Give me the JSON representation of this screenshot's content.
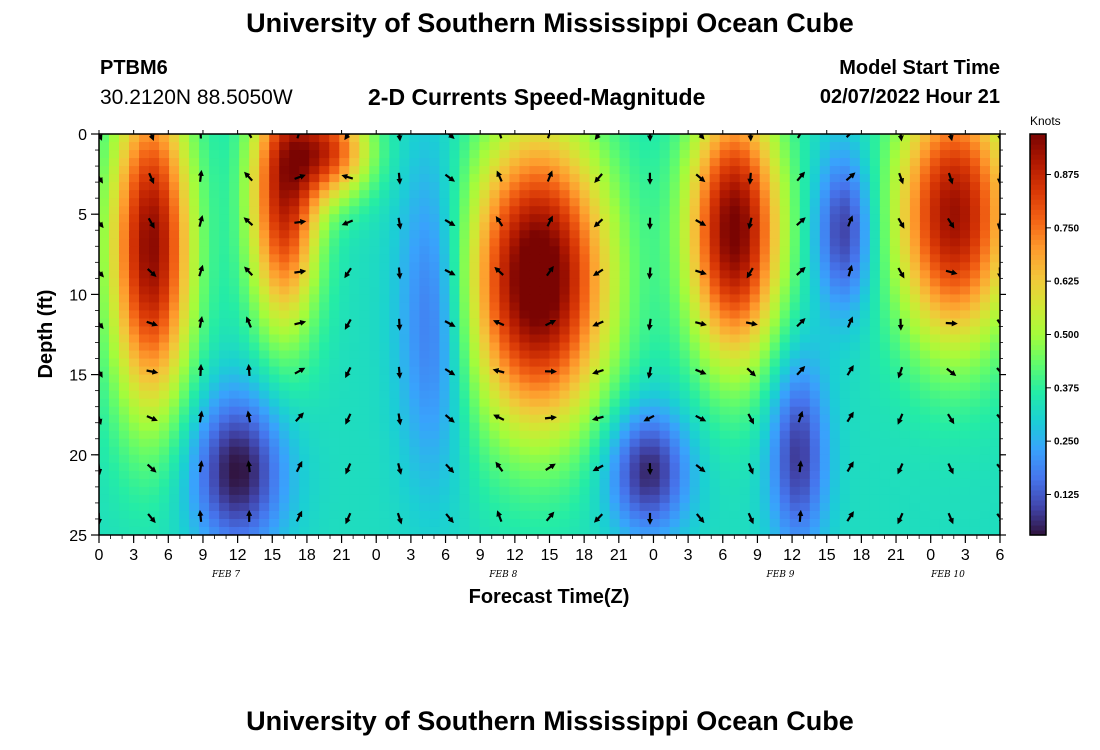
{
  "header": {
    "title": "University of Southern Mississippi Ocean Cube",
    "station_id": "PTBM6",
    "coordinates": "30.2120N  88.5050W",
    "subtitle": "2-D Currents Speed-Magnitude",
    "model_start_label": "Model Start Time",
    "model_start_value": "02/07/2022 Hour 21"
  },
  "footer": {
    "title": "University of Southern Mississippi Ocean Cube"
  },
  "chart_data": {
    "type": "heatmap",
    "title": "2-D Currents Speed-Magnitude",
    "xlabel": "Forecast Time(Z)",
    "ylabel": "Depth (ft)",
    "x_tick_labels": [
      "0",
      "3",
      "6",
      "9",
      "12",
      "15",
      "18",
      "21",
      "0",
      "3",
      "6",
      "9",
      "12",
      "15",
      "18",
      "21",
      "0",
      "3",
      "6",
      "9",
      "12",
      "15",
      "18",
      "21",
      "0",
      "3",
      "6"
    ],
    "x_range_hours": [
      0,
      78
    ],
    "date_labels": [
      {
        "label": "FEB 7",
        "hour": 11
      },
      {
        "label": "FEB 8",
        "hour": 35
      },
      {
        "label": "FEB 9",
        "hour": 59
      },
      {
        "label": "FEB 10",
        "hour": 73.5
      }
    ],
    "y_ticks": [
      0,
      5,
      10,
      15,
      20,
      25
    ],
    "y_range_ft": [
      0,
      25
    ],
    "colorbar": {
      "title": "Knots",
      "range": [
        0.03,
        0.97
      ],
      "tick_values": [
        0.125,
        0.25,
        0.375,
        0.5,
        0.625,
        0.75,
        0.875
      ],
      "tick_labels": [
        "0.125",
        "0.250",
        "0.375",
        "0.500",
        "0.625",
        "0.750",
        "0.875"
      ]
    },
    "arrow_hours": [
      0,
      4.5,
      8.8,
      13,
      17.3,
      21.6,
      26,
      30.3,
      34.7,
      39,
      43.3,
      47.7,
      52,
      56.4,
      60.7,
      65,
      69.4,
      73.7,
      78
    ],
    "arrow_depths_ft": [
      0,
      2.7,
      5.5,
      8.6,
      11.8,
      14.8,
      17.7,
      20.8,
      23.9
    ],
    "speed_model_features": [
      {
        "hour": 4.5,
        "depth": 7,
        "sigma_hours": 3.5,
        "sigma_depth": 10,
        "amplitude": 0.62
      },
      {
        "hour": 16,
        "depth": 4,
        "sigma_hours": 3,
        "sigma_depth": 8,
        "amplitude": 0.55
      },
      {
        "hour": 20,
        "depth": 1,
        "sigma_hours": 3.5,
        "sigma_depth": 3,
        "amplitude": 0.45
      },
      {
        "hour": 38,
        "depth": 9,
        "sigma_hours": 6,
        "sigma_depth": 9,
        "amplitude": 0.7
      },
      {
        "hour": 55,
        "depth": 6,
        "sigma_hours": 4,
        "sigma_depth": 8,
        "amplitude": 0.65
      },
      {
        "hour": 74,
        "depth": 5,
        "sigma_hours": 5,
        "sigma_depth": 8,
        "amplitude": 0.6
      },
      {
        "hour": 12,
        "depth": 21,
        "sigma_hours": 4,
        "sigma_depth": 5,
        "amplitude": -0.3
      },
      {
        "hour": 29,
        "depth": 11,
        "sigma_hours": 3,
        "sigma_depth": 10,
        "amplitude": -0.2
      },
      {
        "hour": 47.5,
        "depth": 21,
        "sigma_hours": 3.5,
        "sigma_depth": 4,
        "amplitude": -0.28
      },
      {
        "hour": 60.5,
        "depth": 20,
        "sigma_hours": 2.5,
        "sigma_depth": 6,
        "amplitude": -0.25
      },
      {
        "hour": 64.5,
        "depth": 6,
        "sigma_hours": 2.5,
        "sigma_depth": 5,
        "amplitude": -0.25
      }
    ],
    "speed_model_base": 0.33,
    "colormap": [
      "#30123b",
      "#4145ab",
      "#4675ed",
      "#39a2fc",
      "#1bcfd4",
      "#24eca6",
      "#61fc6c",
      "#a4fc3b",
      "#d1e834",
      "#f3c63a",
      "#fe9b2d",
      "#f36315",
      "#d93806",
      "#b11901",
      "#7a0402"
    ]
  }
}
